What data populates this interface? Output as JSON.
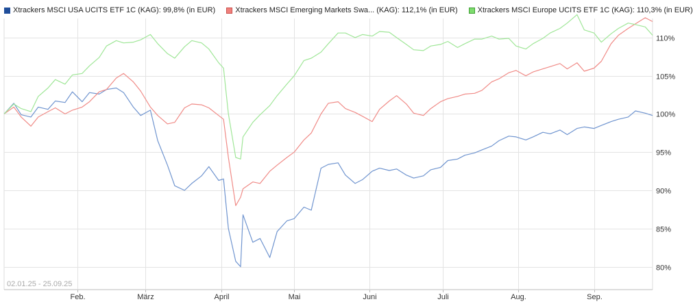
{
  "legend": [
    {
      "label": "Xtrackers MSCI USA UCITS ETF 1C (KAG): 99,8% (in EUR)",
      "color": "#1f4e9a"
    },
    {
      "label": "Xtrackers MSCI Emerging Markets Swa... (KAG): 112,1% (in EUR)",
      "color": "#f0807c"
    },
    {
      "label": "Xtrackers MSCI Europe UCITS ETF 1C (KAG): 110,3% (in EUR)",
      "color": "#7ddc6e"
    }
  ],
  "date_range": "02.01.25 - 25.09.25",
  "chart_data": {
    "type": "line",
    "x_axis": {
      "type": "date",
      "range": [
        "2025-01-02",
        "2025-09-25"
      ],
      "ticks": [
        {
          "date": "2025-02-01",
          "label": "Feb."
        },
        {
          "date": "2025-03-01",
          "label": "März"
        },
        {
          "date": "2025-04-01",
          "label": "April"
        },
        {
          "date": "2025-05-01",
          "label": "Mai"
        },
        {
          "date": "2025-06-01",
          "label": "Juni"
        },
        {
          "date": "2025-07-01",
          "label": "Juli"
        },
        {
          "date": "2025-08-01",
          "label": "Aug."
        },
        {
          "date": "2025-09-01",
          "label": "Sep."
        }
      ]
    },
    "y_axis": {
      "unit": "%",
      "range": [
        77,
        112.5
      ],
      "ticks": [
        {
          "value": 80,
          "label": "80%"
        },
        {
          "value": 85,
          "label": "85%"
        },
        {
          "value": 90,
          "label": "90%"
        },
        {
          "value": 95,
          "label": "95%"
        },
        {
          "value": 100,
          "label": "100%"
        },
        {
          "value": 105,
          "label": "105%"
        },
        {
          "value": 110,
          "label": "110%"
        }
      ],
      "position": "right"
    },
    "grid": true,
    "legend_position": "top",
    "series": [
      {
        "name": "Xtrackers MSCI USA UCITS ETF 1C (KAG): 99,8% (in EUR)",
        "color": "#6f94cf",
        "points": [
          [
            "2025-01-02",
            100.0
          ],
          [
            "2025-01-06",
            101.4
          ],
          [
            "2025-01-09",
            99.9
          ],
          [
            "2025-01-13",
            99.6
          ],
          [
            "2025-01-16",
            100.9
          ],
          [
            "2025-01-20",
            100.6
          ],
          [
            "2025-01-23",
            101.7
          ],
          [
            "2025-01-27",
            101.5
          ],
          [
            "2025-01-30",
            102.9
          ],
          [
            "2025-02-03",
            101.6
          ],
          [
            "2025-02-06",
            102.8
          ],
          [
            "2025-02-10",
            102.6
          ],
          [
            "2025-02-13",
            103.2
          ],
          [
            "2025-02-17",
            103.4
          ],
          [
            "2025-02-20",
            102.8
          ],
          [
            "2025-02-24",
            100.9
          ],
          [
            "2025-02-27",
            99.8
          ],
          [
            "2025-03-03",
            100.5
          ],
          [
            "2025-03-06",
            96.5
          ],
          [
            "2025-03-10",
            93.3
          ],
          [
            "2025-03-13",
            90.6
          ],
          [
            "2025-03-17",
            90.0
          ],
          [
            "2025-03-20",
            90.9
          ],
          [
            "2025-03-24",
            91.9
          ],
          [
            "2025-03-27",
            93.1
          ],
          [
            "2025-03-31",
            91.3
          ],
          [
            "2025-04-02",
            91.5
          ],
          [
            "2025-04-04",
            85.0
          ],
          [
            "2025-04-07",
            80.7
          ],
          [
            "2025-04-09",
            80.0
          ],
          [
            "2025-04-10",
            86.8
          ],
          [
            "2025-04-14",
            83.2
          ],
          [
            "2025-04-17",
            83.7
          ],
          [
            "2025-04-21",
            81.2
          ],
          [
            "2025-04-24",
            84.6
          ],
          [
            "2025-04-28",
            86.0
          ],
          [
            "2025-05-01",
            86.3
          ],
          [
            "2025-05-05",
            87.8
          ],
          [
            "2025-05-08",
            87.4
          ],
          [
            "2025-05-12",
            92.9
          ],
          [
            "2025-05-15",
            93.4
          ],
          [
            "2025-05-19",
            93.6
          ],
          [
            "2025-05-22",
            92.0
          ],
          [
            "2025-05-26",
            90.9
          ],
          [
            "2025-05-29",
            91.4
          ],
          [
            "2025-06-02",
            92.5
          ],
          [
            "2025-06-05",
            92.9
          ],
          [
            "2025-06-09",
            92.6
          ],
          [
            "2025-06-12",
            92.8
          ],
          [
            "2025-06-16",
            92.0
          ],
          [
            "2025-06-19",
            91.6
          ],
          [
            "2025-06-23",
            91.9
          ],
          [
            "2025-06-26",
            92.7
          ],
          [
            "2025-06-30",
            93.0
          ],
          [
            "2025-07-03",
            93.9
          ],
          [
            "2025-07-07",
            94.1
          ],
          [
            "2025-07-10",
            94.6
          ],
          [
            "2025-07-14",
            94.9
          ],
          [
            "2025-07-17",
            95.3
          ],
          [
            "2025-07-21",
            95.8
          ],
          [
            "2025-07-24",
            96.5
          ],
          [
            "2025-07-28",
            97.1
          ],
          [
            "2025-07-31",
            97.0
          ],
          [
            "2025-08-04",
            96.6
          ],
          [
            "2025-08-07",
            97.0
          ],
          [
            "2025-08-11",
            97.6
          ],
          [
            "2025-08-14",
            97.4
          ],
          [
            "2025-08-18",
            97.9
          ],
          [
            "2025-08-21",
            97.3
          ],
          [
            "2025-08-25",
            98.1
          ],
          [
            "2025-08-28",
            98.3
          ],
          [
            "2025-09-01",
            98.1
          ],
          [
            "2025-09-04",
            98.5
          ],
          [
            "2025-09-08",
            99.0
          ],
          [
            "2025-09-11",
            99.3
          ],
          [
            "2025-09-15",
            99.6
          ],
          [
            "2025-09-18",
            100.4
          ],
          [
            "2025-09-22",
            100.1
          ],
          [
            "2025-09-25",
            99.8
          ]
        ]
      },
      {
        "name": "Xtrackers MSCI Emerging Markets Swa... (KAG): 112,1% (in EUR)",
        "color": "#f08a86",
        "points": [
          [
            "2025-01-02",
            100.0
          ],
          [
            "2025-01-06",
            100.9
          ],
          [
            "2025-01-09",
            99.6
          ],
          [
            "2025-01-13",
            98.4
          ],
          [
            "2025-01-16",
            99.6
          ],
          [
            "2025-01-20",
            100.3
          ],
          [
            "2025-01-23",
            100.8
          ],
          [
            "2025-01-27",
            100.0
          ],
          [
            "2025-01-30",
            100.5
          ],
          [
            "2025-02-03",
            100.9
          ],
          [
            "2025-02-06",
            101.6
          ],
          [
            "2025-02-10",
            102.9
          ],
          [
            "2025-02-13",
            103.2
          ],
          [
            "2025-02-17",
            104.7
          ],
          [
            "2025-02-20",
            105.3
          ],
          [
            "2025-02-24",
            104.2
          ],
          [
            "2025-02-27",
            103.0
          ],
          [
            "2025-03-03",
            100.9
          ],
          [
            "2025-03-06",
            99.8
          ],
          [
            "2025-03-10",
            98.7
          ],
          [
            "2025-03-13",
            98.9
          ],
          [
            "2025-03-17",
            100.8
          ],
          [
            "2025-03-20",
            101.3
          ],
          [
            "2025-03-24",
            101.2
          ],
          [
            "2025-03-27",
            100.8
          ],
          [
            "2025-03-31",
            99.8
          ],
          [
            "2025-04-02",
            99.3
          ],
          [
            "2025-04-04",
            94.3
          ],
          [
            "2025-04-07",
            88.0
          ],
          [
            "2025-04-09",
            89.1
          ],
          [
            "2025-04-10",
            90.2
          ],
          [
            "2025-04-14",
            91.1
          ],
          [
            "2025-04-17",
            90.9
          ],
          [
            "2025-04-21",
            92.5
          ],
          [
            "2025-04-24",
            93.3
          ],
          [
            "2025-04-28",
            94.3
          ],
          [
            "2025-05-01",
            95.0
          ],
          [
            "2025-05-05",
            96.6
          ],
          [
            "2025-05-08",
            97.5
          ],
          [
            "2025-05-12",
            100.0
          ],
          [
            "2025-05-15",
            101.4
          ],
          [
            "2025-05-19",
            101.6
          ],
          [
            "2025-05-22",
            100.7
          ],
          [
            "2025-05-26",
            100.2
          ],
          [
            "2025-05-29",
            99.7
          ],
          [
            "2025-06-02",
            99.0
          ],
          [
            "2025-06-05",
            100.6
          ],
          [
            "2025-06-09",
            101.7
          ],
          [
            "2025-06-12",
            102.4
          ],
          [
            "2025-06-16",
            101.3
          ],
          [
            "2025-06-19",
            100.1
          ],
          [
            "2025-06-23",
            99.8
          ],
          [
            "2025-06-26",
            100.7
          ],
          [
            "2025-06-30",
            101.6
          ],
          [
            "2025-07-03",
            102.0
          ],
          [
            "2025-07-07",
            102.3
          ],
          [
            "2025-07-10",
            102.6
          ],
          [
            "2025-07-14",
            102.7
          ],
          [
            "2025-07-17",
            103.1
          ],
          [
            "2025-07-21",
            104.2
          ],
          [
            "2025-07-24",
            104.6
          ],
          [
            "2025-07-28",
            105.4
          ],
          [
            "2025-07-31",
            105.7
          ],
          [
            "2025-08-04",
            105.0
          ],
          [
            "2025-08-07",
            105.5
          ],
          [
            "2025-08-11",
            105.9
          ],
          [
            "2025-08-14",
            106.2
          ],
          [
            "2025-08-18",
            106.6
          ],
          [
            "2025-08-21",
            105.9
          ],
          [
            "2025-08-25",
            106.7
          ],
          [
            "2025-08-28",
            105.6
          ],
          [
            "2025-09-01",
            106.0
          ],
          [
            "2025-09-04",
            106.9
          ],
          [
            "2025-09-08",
            109.2
          ],
          [
            "2025-09-11",
            110.3
          ],
          [
            "2025-09-15",
            111.2
          ],
          [
            "2025-09-18",
            111.8
          ],
          [
            "2025-09-22",
            112.6
          ],
          [
            "2025-09-25",
            112.1
          ]
        ]
      },
      {
        "name": "Xtrackers MSCI Europe UCITS ETF 1C (KAG): 110,3% (in EUR)",
        "color": "#9fe697",
        "points": [
          [
            "2025-01-02",
            100.0
          ],
          [
            "2025-01-06",
            101.3
          ],
          [
            "2025-01-09",
            100.7
          ],
          [
            "2025-01-13",
            100.3
          ],
          [
            "2025-01-16",
            102.3
          ],
          [
            "2025-01-20",
            103.4
          ],
          [
            "2025-01-23",
            104.5
          ],
          [
            "2025-01-27",
            103.9
          ],
          [
            "2025-01-30",
            105.1
          ],
          [
            "2025-02-03",
            105.3
          ],
          [
            "2025-02-06",
            106.3
          ],
          [
            "2025-02-10",
            107.4
          ],
          [
            "2025-02-13",
            108.9
          ],
          [
            "2025-02-17",
            109.6
          ],
          [
            "2025-02-20",
            109.3
          ],
          [
            "2025-02-24",
            109.4
          ],
          [
            "2025-02-27",
            109.7
          ],
          [
            "2025-03-03",
            110.4
          ],
          [
            "2025-03-06",
            109.2
          ],
          [
            "2025-03-10",
            107.9
          ],
          [
            "2025-03-13",
            107.3
          ],
          [
            "2025-03-17",
            108.8
          ],
          [
            "2025-03-20",
            109.6
          ],
          [
            "2025-03-24",
            109.3
          ],
          [
            "2025-03-27",
            108.5
          ],
          [
            "2025-03-31",
            106.7
          ],
          [
            "2025-04-02",
            106.0
          ],
          [
            "2025-04-04",
            100.0
          ],
          [
            "2025-04-07",
            94.3
          ],
          [
            "2025-04-09",
            94.1
          ],
          [
            "2025-04-10",
            97.0
          ],
          [
            "2025-04-14",
            98.9
          ],
          [
            "2025-04-17",
            99.9
          ],
          [
            "2025-04-21",
            101.1
          ],
          [
            "2025-04-24",
            102.4
          ],
          [
            "2025-04-28",
            103.9
          ],
          [
            "2025-05-01",
            105.0
          ],
          [
            "2025-05-05",
            107.0
          ],
          [
            "2025-05-08",
            107.3
          ],
          [
            "2025-05-12",
            108.1
          ],
          [
            "2025-05-15",
            109.2
          ],
          [
            "2025-05-19",
            110.6
          ],
          [
            "2025-05-22",
            110.6
          ],
          [
            "2025-05-26",
            110.0
          ],
          [
            "2025-05-29",
            110.4
          ],
          [
            "2025-06-02",
            110.2
          ],
          [
            "2025-06-05",
            110.8
          ],
          [
            "2025-06-09",
            110.7
          ],
          [
            "2025-06-12",
            110.0
          ],
          [
            "2025-06-16",
            109.1
          ],
          [
            "2025-06-19",
            108.4
          ],
          [
            "2025-06-23",
            108.3
          ],
          [
            "2025-06-26",
            108.9
          ],
          [
            "2025-06-30",
            109.1
          ],
          [
            "2025-07-03",
            109.5
          ],
          [
            "2025-07-07",
            108.7
          ],
          [
            "2025-07-10",
            109.2
          ],
          [
            "2025-07-14",
            109.8
          ],
          [
            "2025-07-17",
            109.8
          ],
          [
            "2025-07-21",
            110.2
          ],
          [
            "2025-07-24",
            109.8
          ],
          [
            "2025-07-28",
            109.9
          ],
          [
            "2025-07-31",
            108.9
          ],
          [
            "2025-08-04",
            108.5
          ],
          [
            "2025-08-07",
            109.2
          ],
          [
            "2025-08-11",
            109.9
          ],
          [
            "2025-08-14",
            110.6
          ],
          [
            "2025-08-18",
            111.2
          ],
          [
            "2025-08-21",
            111.9
          ],
          [
            "2025-08-25",
            113.0
          ],
          [
            "2025-08-28",
            111.0
          ],
          [
            "2025-09-01",
            110.6
          ],
          [
            "2025-09-04",
            109.4
          ],
          [
            "2025-09-08",
            110.5
          ],
          [
            "2025-09-11",
            111.2
          ],
          [
            "2025-09-15",
            111.9
          ],
          [
            "2025-09-18",
            111.7
          ],
          [
            "2025-09-22",
            111.4
          ],
          [
            "2025-09-25",
            110.3
          ]
        ]
      }
    ]
  }
}
